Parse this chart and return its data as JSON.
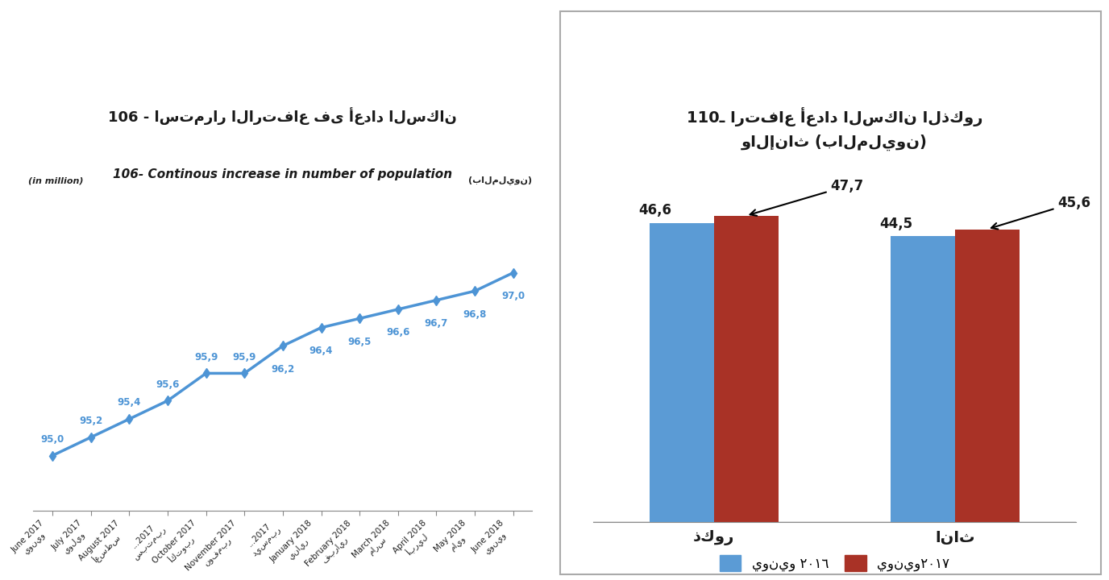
{
  "left_chart": {
    "arabic_title": "106 - استمرار الارتفاع فى أعداد السكان",
    "english_title": "106- Continous increase in number of population",
    "ylabel_ar": "(بالمليون)",
    "ylabel_en": "(in million)",
    "title_bg": "#f2dede",
    "x_labels": [
      "June 2017\nيونيو",
      "July 2017\nيوليو",
      "August 2017\nأغسطس",
      "...2017\nسبتمبر",
      "October 2017\nأكتوبر",
      "November 2017\nنوفمبر",
      "...2017\nديسمبر",
      "January 2018\nيناير",
      "February 2018\nفبراير",
      "March 2018\nمارس",
      "April 2018\nأبريل",
      "May 2018\nمايو",
      "June 2018\nيونيو"
    ],
    "values": [
      95.0,
      95.2,
      95.4,
      95.6,
      95.9,
      95.9,
      96.2,
      96.4,
      96.5,
      96.6,
      96.7,
      96.8,
      97.0
    ],
    "line_color": "#4d94d5",
    "marker_color": "#4d94d5"
  },
  "right_chart": {
    "title_line1": "110ـ ارتفاع أعداد السكان الذكور",
    "title_line2": "والإناث (بالمليون)",
    "cat_male": "ذكور",
    "cat_female": "اناث",
    "values_2016": [
      46.6,
      44.5
    ],
    "values_2017": [
      47.7,
      45.6
    ],
    "bar_color_2016": "#5b9bd5",
    "bar_color_2017": "#a93226",
    "legend_2016": "يونيو ٢٠١٦",
    "legend_2017": "يونيو٢٠١٧",
    "ann_male_2016": "46,6",
    "ann_male_2017": "47,7",
    "ann_female_2016": "44,5",
    "ann_female_2017": "45,6"
  }
}
